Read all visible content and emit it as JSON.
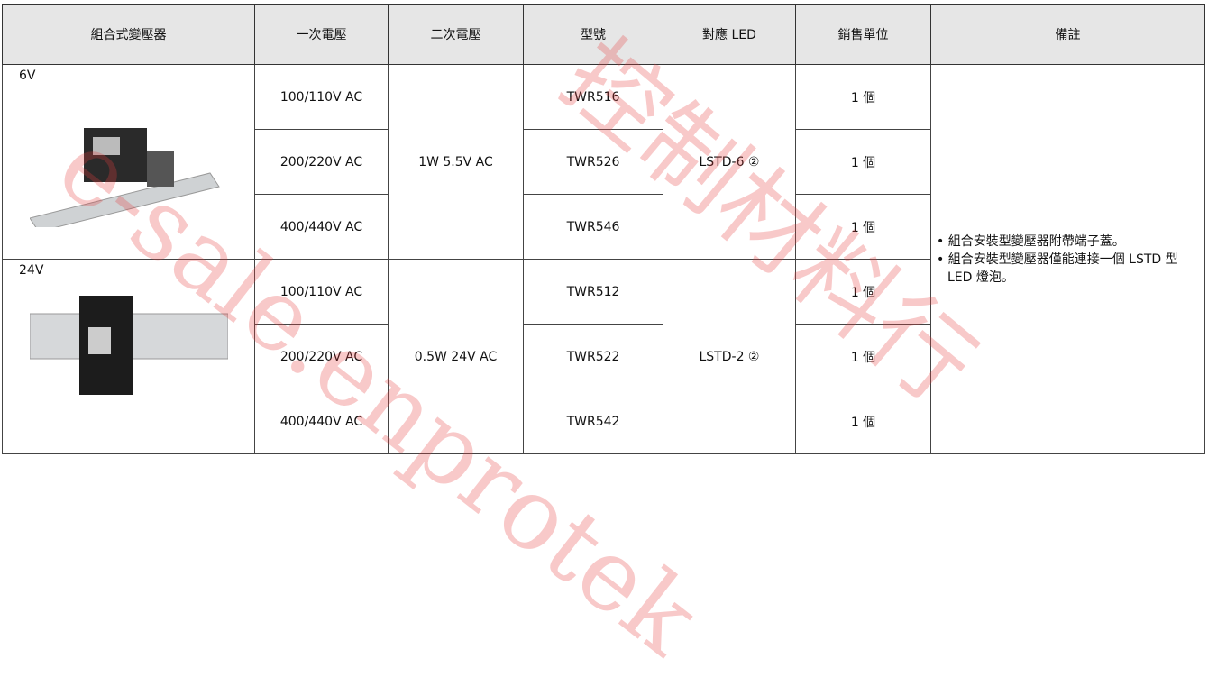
{
  "table": {
    "headers": [
      "組合式變壓器",
      "一次電壓",
      "二次電壓",
      "型號",
      "對應 LED",
      "銷售單位",
      "備註"
    ],
    "groups": [
      {
        "label": "6V",
        "secondary": "1W  5.5V AC",
        "led": "LSTD-6 ②",
        "rows": [
          {
            "primary": "100/110V AC",
            "model": "TWR516",
            "unit": "1 個"
          },
          {
            "primary": "200/220V AC",
            "model": "TWR526",
            "unit": "1 個"
          },
          {
            "primary": "400/440V AC",
            "model": "TWR546",
            "unit": "1 個"
          }
        ]
      },
      {
        "label": "24V",
        "secondary": "0.5W  24V AC",
        "led": "LSTD-2 ②",
        "rows": [
          {
            "primary": "100/110V AC",
            "model": "TWR512",
            "unit": "1 個"
          },
          {
            "primary": "200/220V AC",
            "model": "TWR522",
            "unit": "1 個"
          },
          {
            "primary": "400/440V AC",
            "model": "TWR542",
            "unit": "1 個"
          }
        ]
      }
    ],
    "remarks": [
      "組合安裝型變壓器附帶端子蓋。",
      "組合安裝型變壓器僅能連接一個 LSTD 型 LED 燈泡。"
    ]
  },
  "watermark": [
    "e-sale.enprotek",
    "控制材料行"
  ]
}
